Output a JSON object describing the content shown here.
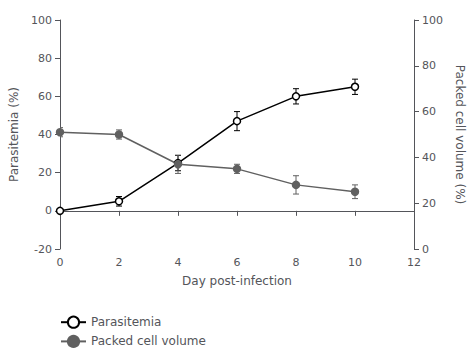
{
  "chart_data": {
    "type": "line",
    "xlabel": "Day post-infection",
    "ylabel": "Parasitemia (%)",
    "y2label": "Packed cell volume (%)",
    "x": [
      0,
      2,
      4,
      6,
      8,
      10
    ],
    "series": [
      {
        "name": "Parasitemia",
        "color": "#000000",
        "marker": "open_circle",
        "values": [
          0,
          5,
          25,
          47,
          60,
          65
        ],
        "errors": [
          0.5,
          2.5,
          4,
          5,
          4,
          4
        ]
      },
      {
        "name": "Packed cell volume",
        "color": "#606060",
        "marker": "filled_circle",
        "axis": "y2",
        "values": [
          51,
          50,
          37,
          35,
          28,
          25
        ],
        "errors": [
          2,
          2,
          4,
          2,
          4,
          3
        ]
      }
    ],
    "xlim": [
      0,
      12
    ],
    "xticks": [
      0,
      2,
      4,
      6,
      8,
      10,
      12
    ],
    "ylim": [
      -20,
      100
    ],
    "yticks": [
      -20,
      0,
      20,
      40,
      60,
      80,
      100
    ],
    "y2lim": [
      0,
      100
    ],
    "y2ticks": [
      0,
      20,
      40,
      60,
      80,
      100
    ],
    "grid": false,
    "legend": "lower left"
  }
}
